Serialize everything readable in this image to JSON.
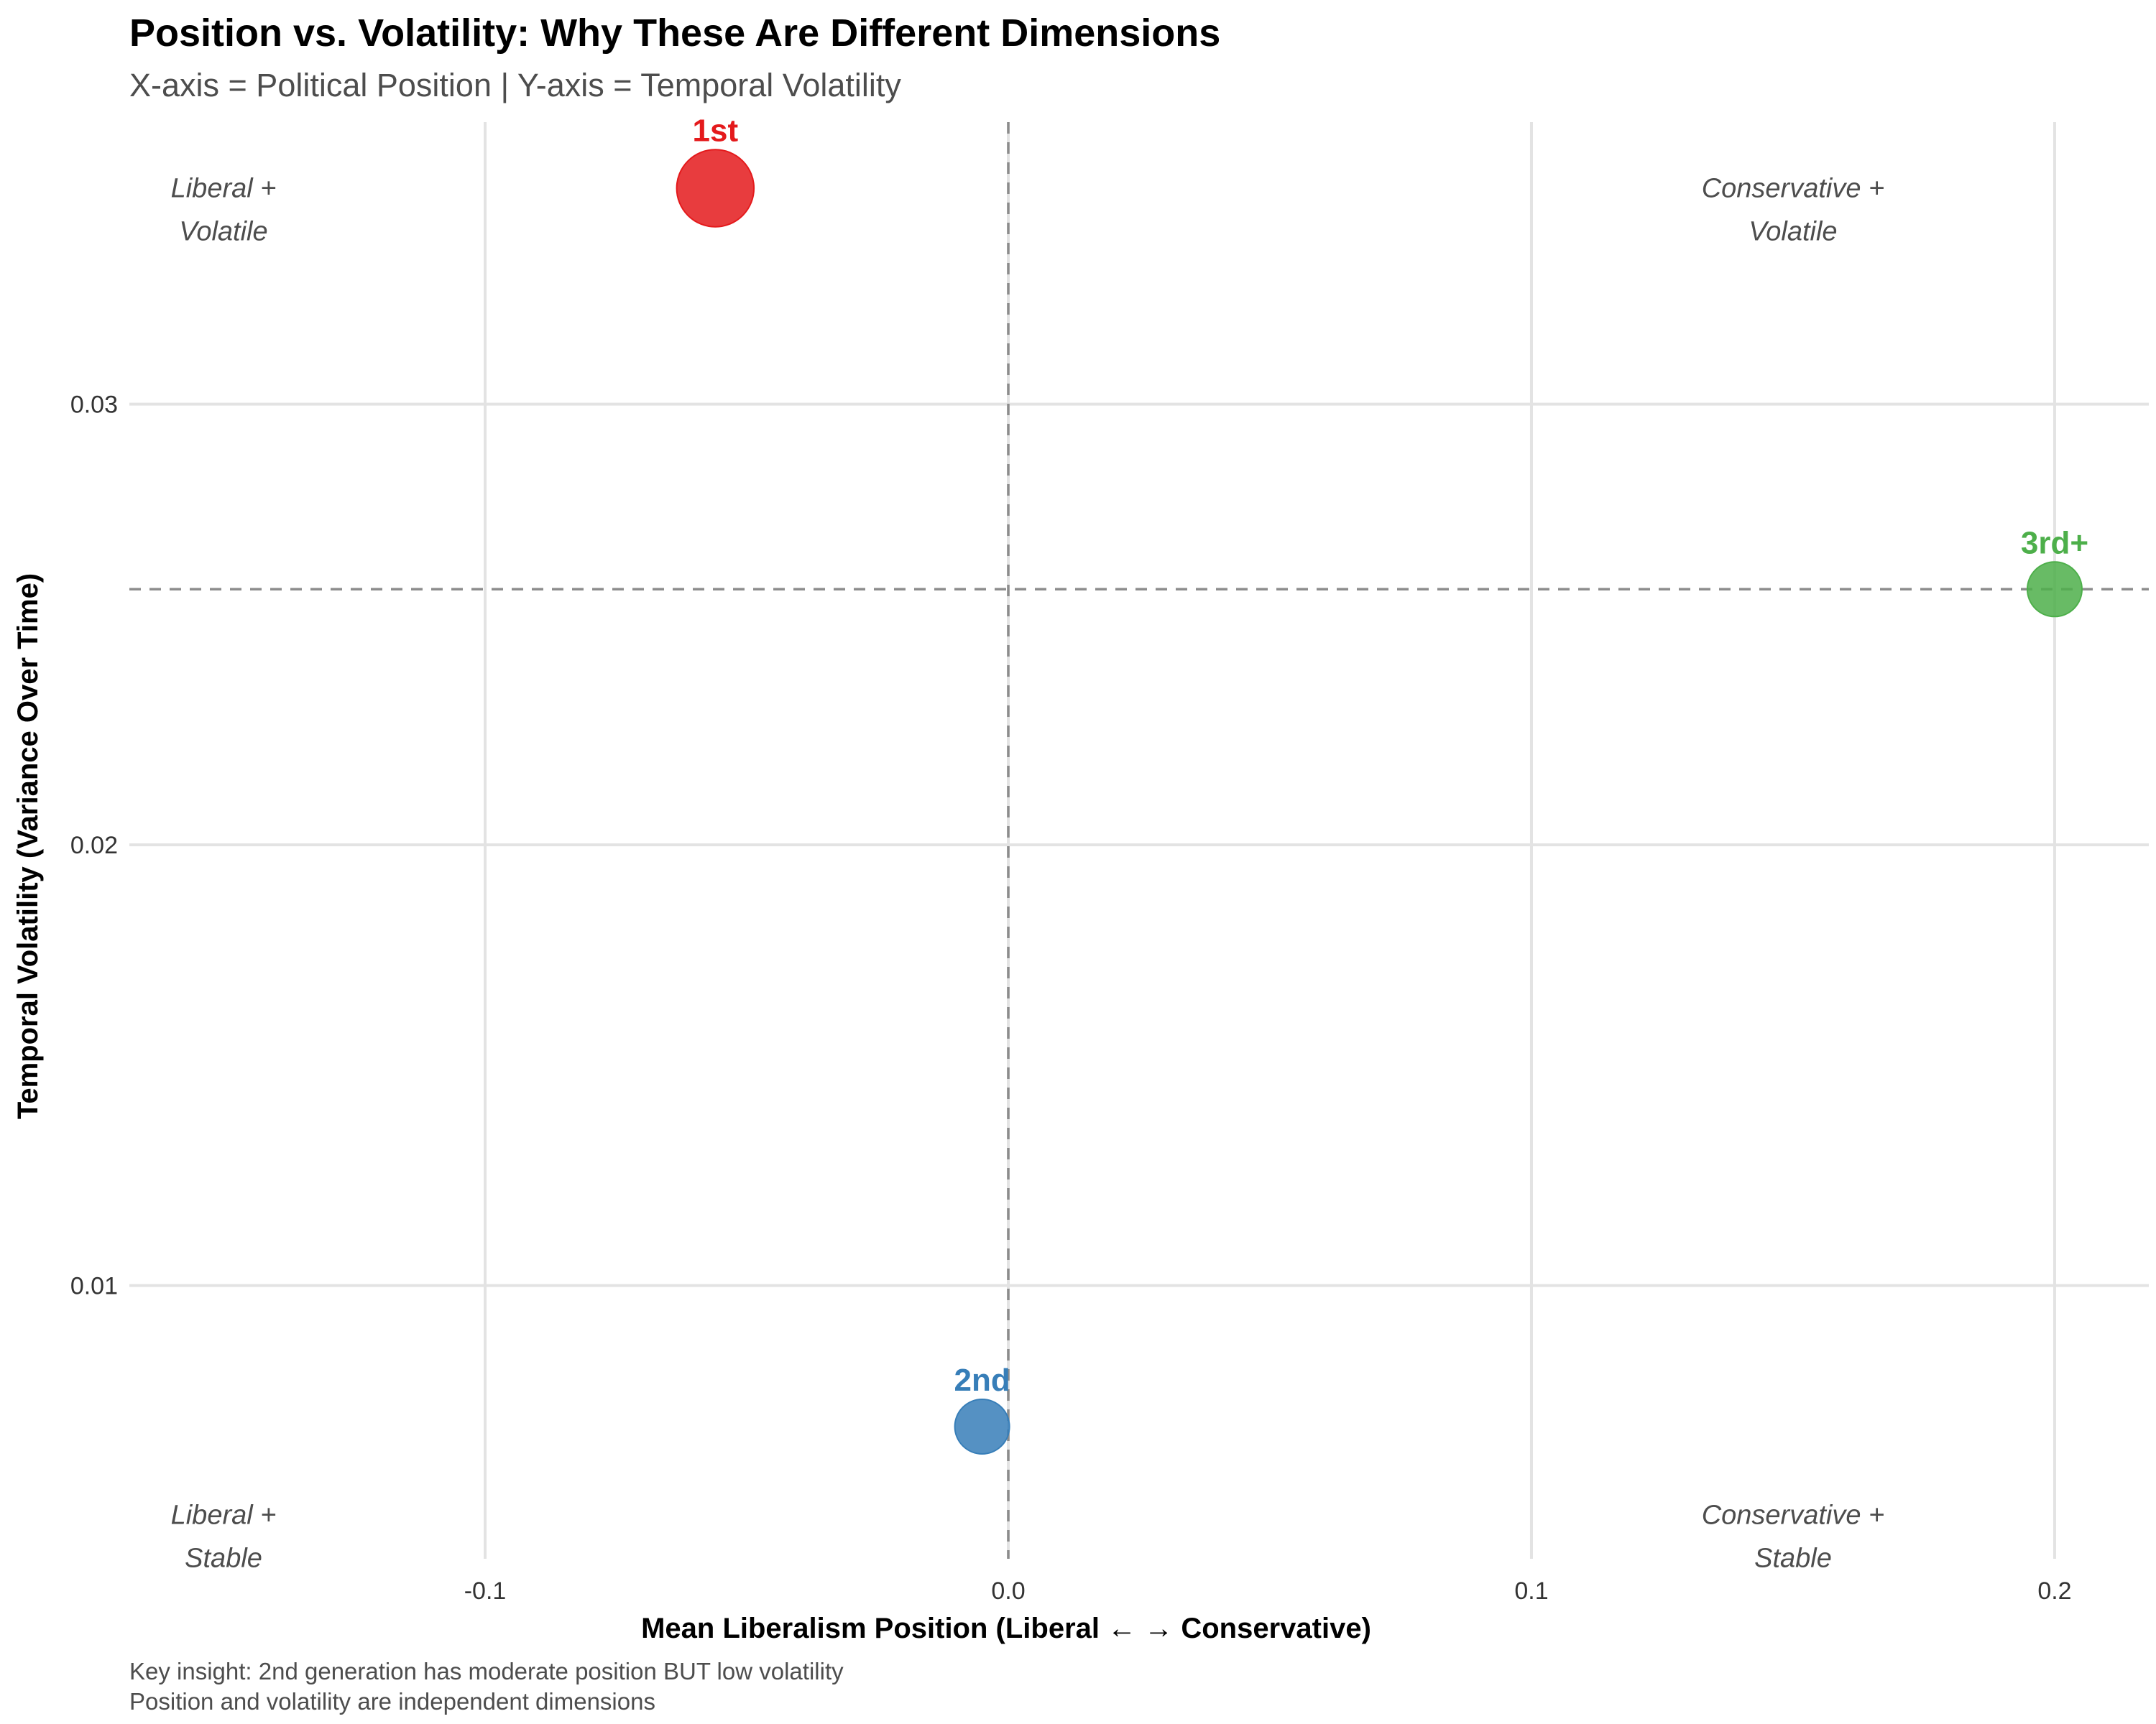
{
  "chart_data": {
    "type": "scatter",
    "title": "Position vs. Volatility: Why These Are Different Dimensions",
    "subtitle": "X-axis = Political Position | Y-axis = Temporal Volatility",
    "xlabel": "Mean Liberalism Position (Liberal ← → Conservative)",
    "ylabel": "Temporal Volatility (Variance Over Time)",
    "xlim": [
      -0.168,
      0.218
    ],
    "ylim": [
      0.0038,
      0.0364
    ],
    "x_ticks": [
      {
        "value": -0.1,
        "label": "-0.1"
      },
      {
        "value": 0.0,
        "label": "0.0"
      },
      {
        "value": 0.1,
        "label": "0.1"
      },
      {
        "value": 0.2,
        "label": "0.2"
      }
    ],
    "y_ticks": [
      {
        "value": 0.01,
        "label": "0.01"
      },
      {
        "value": 0.02,
        "label": "0.02"
      },
      {
        "value": 0.03,
        "label": "0.03"
      }
    ],
    "grid": true,
    "reference_lines": {
      "x": 0.0,
      "y": 0.0258
    },
    "points": [
      {
        "label": "1st",
        "x": -0.056,
        "y": 0.0349,
        "size": 3,
        "color": "#E41A1C"
      },
      {
        "label": "2nd",
        "x": -0.005,
        "y": 0.0068,
        "size": 1.5,
        "color": "#377EB8"
      },
      {
        "label": "3rd+",
        "x": 0.2,
        "y": 0.0258,
        "size": 1.5,
        "color": "#4DAF4A"
      }
    ],
    "quadrant_labels": [
      {
        "lines": [
          "Liberal +",
          "Volatile"
        ],
        "x": -0.15,
        "y": 0.0344
      },
      {
        "lines": [
          "Conservative +",
          "Volatile"
        ],
        "x": 0.15,
        "y": 0.0344
      },
      {
        "lines": [
          "Liberal +",
          "Stable"
        ],
        "x": -0.15,
        "y": 0.0043
      },
      {
        "lines": [
          "Conservative +",
          "Stable"
        ],
        "x": 0.15,
        "y": 0.0043
      }
    ],
    "caption": [
      "Key insight: 2nd generation has moderate position BUT low volatility",
      "Position and volatility are independent dimensions"
    ]
  }
}
